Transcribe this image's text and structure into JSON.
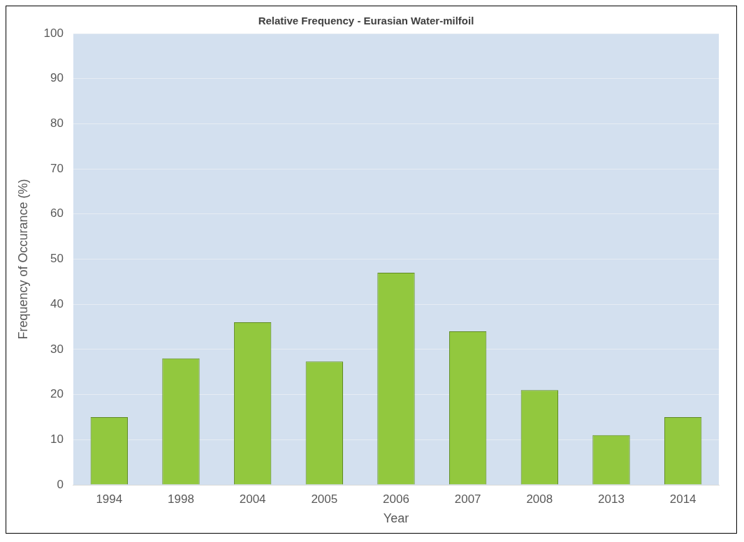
{
  "chart_data": {
    "type": "bar",
    "title": "Relative Frequency - Eurasian Water-milfoil",
    "xlabel": "Year",
    "ylabel": "Frequency of Occurance (%)",
    "categories": [
      "1994",
      "1998",
      "2004",
      "2005",
      "2006",
      "2007",
      "2008",
      "2013",
      "2014"
    ],
    "values": [
      15,
      28,
      36,
      27.3,
      47,
      34,
      21,
      11,
      15
    ],
    "color": "#92c83e",
    "ylim": [
      0,
      100
    ],
    "yticks": [
      0,
      10,
      20,
      30,
      40,
      50,
      60,
      70,
      80,
      90,
      100
    ],
    "grid": "y"
  }
}
